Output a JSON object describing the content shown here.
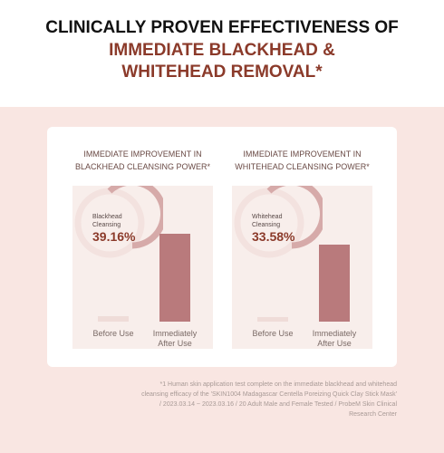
{
  "header": {
    "lines": [
      "CLINICALLY PROVEN EFFECTIVENESS OF",
      "IMMEDIATE BLACKHEAD &",
      "WHITEHEAD REMOVAL*"
    ]
  },
  "chart_data": [
    {
      "type": "bar",
      "title": [
        "IMMEDIATE IMPROVEMENT IN",
        "BLACKHEAD CLEANSING POWER*"
      ],
      "gauge_label": "Blackhead Cleansing",
      "improvement_label": "39.16%",
      "categories": [
        "Before Use",
        "Immediately After Use"
      ],
      "values": [
        6,
        97
      ],
      "colors": [
        "#efdcd8",
        "#b97a7c"
      ],
      "ylim": [
        0,
        150
      ]
    },
    {
      "type": "bar",
      "title": [
        "IMMEDIATE IMPROVEMENT IN",
        "WHITEHEAD CLEANSING POWER*"
      ],
      "gauge_label": "Whitehead Cleansing",
      "improvement_label": "33.58%",
      "categories": [
        "Before Use",
        "Immediately After Use"
      ],
      "values": [
        5,
        85
      ],
      "colors": [
        "#efdcd8",
        "#b97a7c"
      ],
      "ylim": [
        0,
        150
      ]
    }
  ],
  "footnote": [
    "*1 Human skin application test complete on the immediate blackhead and whitehead",
    "cleansing efficacy of the 'SKIN1004 Madagascar Centella Poreizing Quick Clay Stick Mask'",
    "/ 2023.03.14 ~ 2023.03.16 / 20 Adult Male and Female Tested / ProbeM Skin Clinical",
    "Research Center"
  ]
}
